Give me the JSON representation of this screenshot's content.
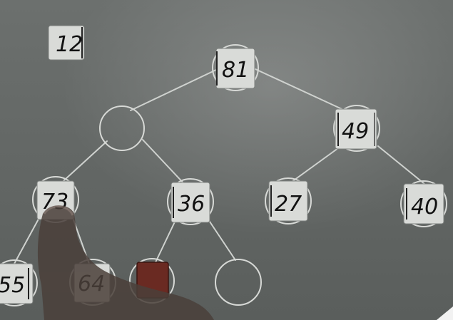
{
  "standalone_card": {
    "value": "12"
  },
  "tree": {
    "root": {
      "value": "81"
    },
    "left_child_empty": {
      "value": ""
    },
    "right_child": {
      "value": "49"
    },
    "ll": {
      "value": "73"
    },
    "lr": {
      "value": "36"
    },
    "rl": {
      "value": "27"
    },
    "rr": {
      "value": "40"
    },
    "lll": {
      "value": "55"
    },
    "llr": {
      "value": "64"
    },
    "lrl_blank_card": {
      "value": ""
    },
    "lrr_empty": {
      "value": ""
    }
  },
  "colors": {
    "board": "#646866",
    "card": "#d9dbd8",
    "ink": "#111111",
    "line": "#cfd2cf",
    "hand": "#4a3f3a",
    "dark_card": "#6a2a22"
  }
}
